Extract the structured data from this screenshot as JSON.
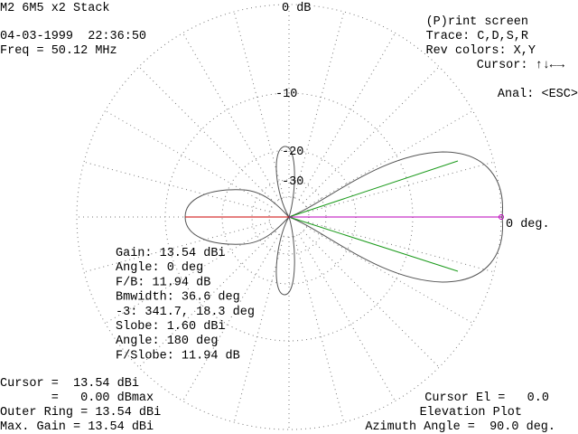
{
  "header": {
    "title": "M2 6M5 x2 Stack",
    "datetime": "04-03-1999  22:36:50",
    "freq": "Freq = 50.12 MHz"
  },
  "menu": [
    "(P)rint screen",
    "Trace: C,D,S,R",
    "Rev colors: X,Y",
    "Cursor: ↑↓←→",
    "Anal: <ESC>"
  ],
  "rings": [
    "0 dB",
    "-10",
    "-20",
    "-30"
  ],
  "angle_label": "0 deg.",
  "analysis": [
    "Gain: 13.54 dBi",
    "Angle: 0 deg",
    "F/B: 11.94 dB",
    "Bmwidth: 36.6 deg",
    "-3: 341.7, 18.3 deg",
    "Slobe: 1.60 dBi",
    "Angle: 180 deg",
    "F/Slobe: 11.94 dB"
  ],
  "status_left": [
    "Cursor =  13.54 dBi",
    "       =   0.00 dBmax",
    "Outer Ring = 13.54 dBi",
    "Max. Gain = 13.54 dBi"
  ],
  "status_right": [
    "Cursor El =   0.0",
    "Elevation Plot",
    "Azimuth Angle =  90.0 deg."
  ]
}
